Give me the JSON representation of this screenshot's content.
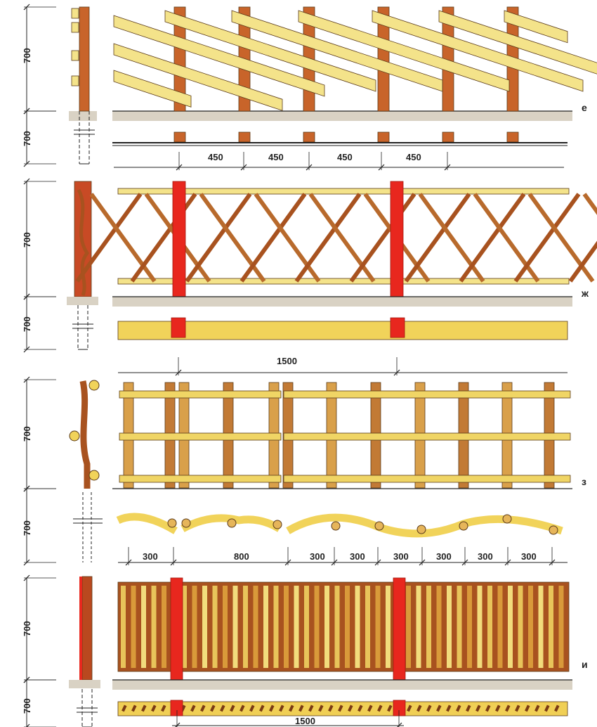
{
  "colors": {
    "post_red": "#e8271e",
    "post_brown": "#c8642a",
    "slat_yellow": "#f4e38a",
    "wood_dark": "#a8521f",
    "ground": "#d9d2c4",
    "line": "#222222"
  },
  "sections": [
    {
      "label": "е",
      "height_above": "700",
      "height_below": "700",
      "spacings": [
        "450",
        "450",
        "450",
        "450"
      ]
    },
    {
      "label": "ж",
      "height_above": "700",
      "height_below": "700",
      "spacings": [
        "1500"
      ]
    },
    {
      "label": "з",
      "height_above": "700",
      "height_below": "700",
      "spacings": [
        "300",
        "800",
        "300",
        "300",
        "300",
        "300",
        "300",
        "300"
      ]
    },
    {
      "label": "и",
      "height_above": "700",
      "height_below": "700",
      "spacings": [
        "1500"
      ]
    }
  ]
}
